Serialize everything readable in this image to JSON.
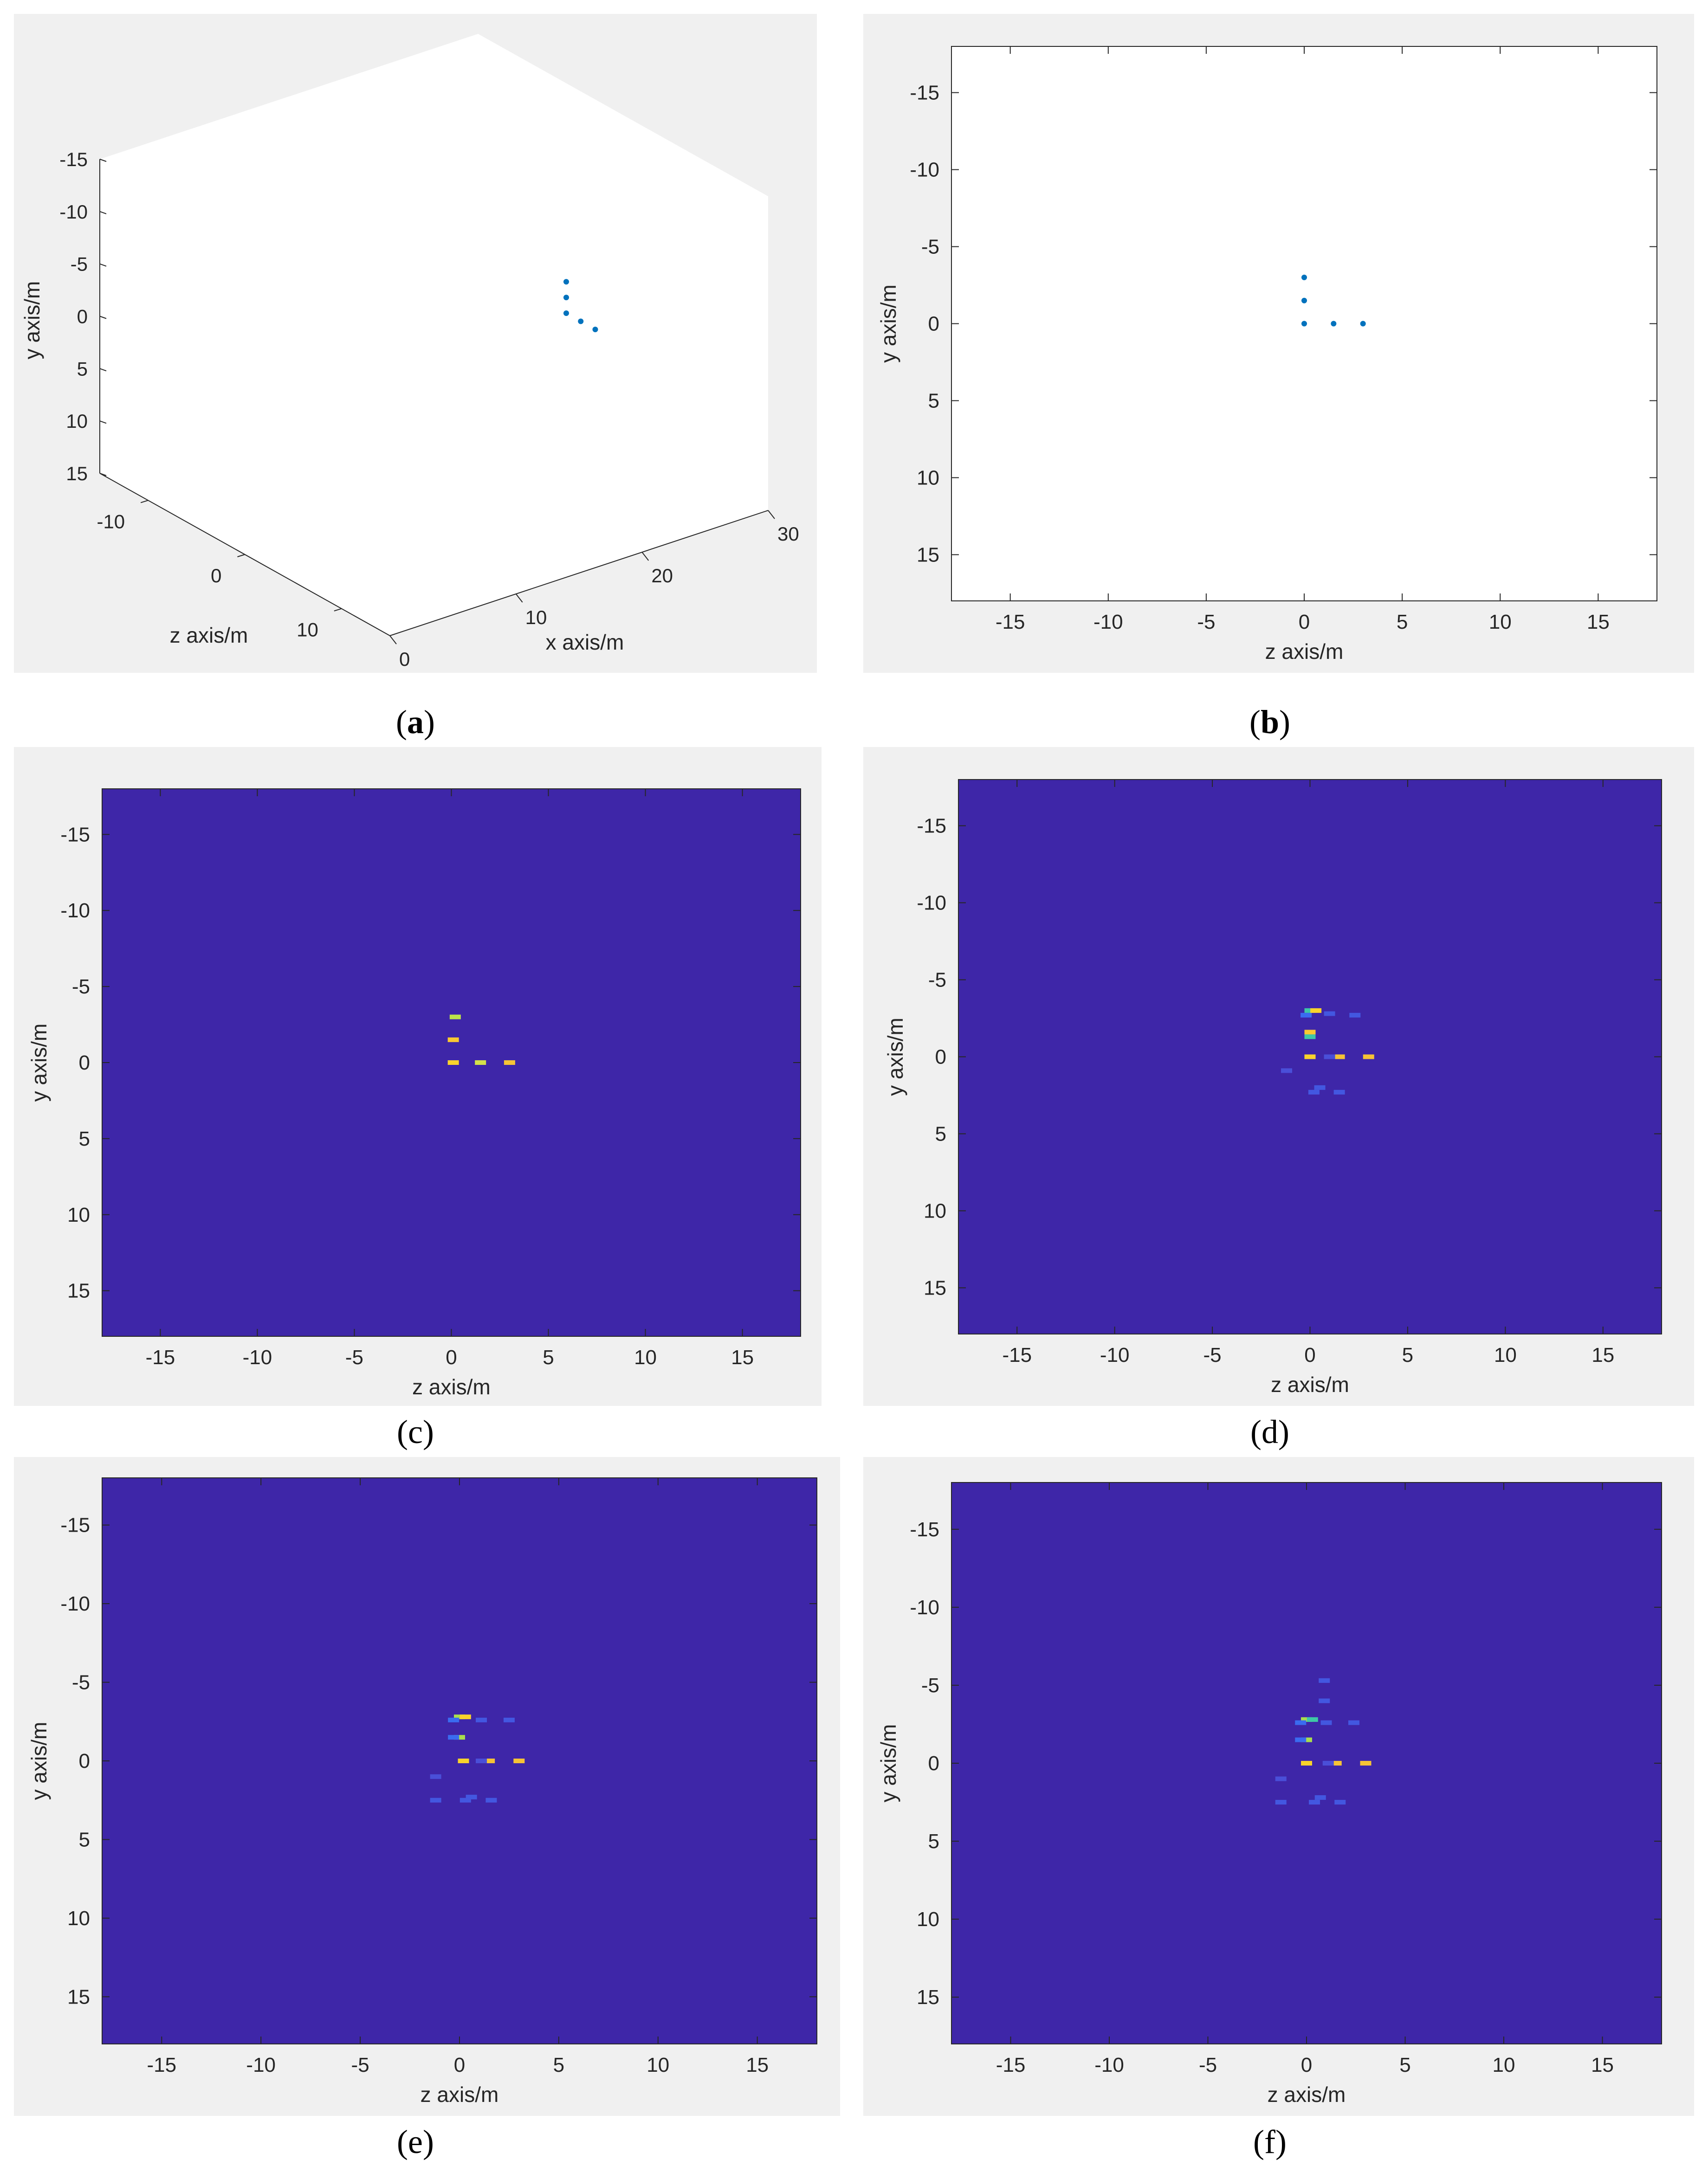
{
  "colors": {
    "figure_bg": "#f0f0f0",
    "axes_bg": "#ffffff",
    "heatmap_bg": "#3e26a8",
    "marker": "#0072bd",
    "axis_line": "#262626",
    "tick_text": "#262626"
  },
  "captions": [
    {
      "letter": "a",
      "bold": true
    },
    {
      "letter": "b",
      "bold": true
    },
    {
      "letter": "c",
      "bold": false
    },
    {
      "letter": "d",
      "bold": false
    },
    {
      "letter": "e",
      "bold": false
    },
    {
      "letter": "f",
      "bold": false
    }
  ],
  "chart_data": [
    {
      "id": "a",
      "type": "scatter3d",
      "xlabel": "x axis/m",
      "ylabel": "y axis/m",
      "zlabel": "z axis/m",
      "xlim": [
        0,
        30
      ],
      "ylim": [
        -15,
        15
      ],
      "zlim": [
        -15,
        15
      ],
      "x_ticks": [
        "0",
        "10",
        "20",
        "30"
      ],
      "y_ticks": [
        "-15",
        "-10",
        "-5",
        "0",
        "5",
        "10",
        "15"
      ],
      "z_ticks": [
        "-10",
        "0",
        "10"
      ],
      "points": [
        {
          "x": 20,
          "y": -3,
          "z": 0
        },
        {
          "x": 20,
          "y": -1.5,
          "z": 0
        },
        {
          "x": 20,
          "y": 0,
          "z": 0
        },
        {
          "x": 20,
          "y": 0,
          "z": 1.5
        },
        {
          "x": 20,
          "y": 0,
          "z": 3
        }
      ]
    },
    {
      "id": "b",
      "type": "scatter",
      "xlabel": "z axis/m",
      "ylabel": "y axis/m",
      "xlim": [
        -18,
        18
      ],
      "ylim": [
        -18,
        18
      ],
      "y_reversed": true,
      "x_ticks": [
        -15,
        -10,
        -5,
        0,
        5,
        10,
        15
      ],
      "y_ticks": [
        -15,
        -10,
        -5,
        0,
        5,
        10,
        15
      ],
      "points": [
        {
          "z": 0,
          "y": -3
        },
        {
          "z": 0,
          "y": -1.5
        },
        {
          "z": 0,
          "y": 0
        },
        {
          "z": 1.5,
          "y": 0
        },
        {
          "z": 3,
          "y": 0
        }
      ]
    },
    {
      "id": "c",
      "type": "heatmap",
      "xlabel": "z axis/m",
      "ylabel": "y axis/m",
      "xlim": [
        -18,
        18
      ],
      "ylim": [
        -18,
        18
      ],
      "y_reversed": true,
      "x_ticks": [
        -15,
        -10,
        -5,
        0,
        5,
        10,
        15
      ],
      "y_ticks": [
        -15,
        -10,
        -5,
        0,
        5,
        10,
        15
      ],
      "cells": [
        {
          "z": 0.2,
          "y": -3,
          "color": "#bde34a"
        },
        {
          "z": 0.1,
          "y": -1.5,
          "color": "#f9c832"
        },
        {
          "z": 0.1,
          "y": 0,
          "color": "#f9d32c"
        },
        {
          "z": 1.5,
          "y": 0,
          "color": "#d4e04a"
        },
        {
          "z": 3,
          "y": 0,
          "color": "#f6c336"
        }
      ]
    },
    {
      "id": "d",
      "type": "heatmap",
      "xlabel": "z axis/m",
      "ylabel": "y axis/m",
      "xlim": [
        -18,
        18
      ],
      "ylim": [
        -18,
        18
      ],
      "y_reversed": true,
      "x_ticks": [
        -15,
        -10,
        -5,
        0,
        5,
        10,
        15
      ],
      "y_ticks": [
        -15,
        -10,
        -5,
        0,
        5,
        10,
        15
      ],
      "cells": [
        {
          "z": 0,
          "y": -3,
          "color": "#3ec8a6"
        },
        {
          "z": 0.3,
          "y": -3,
          "color": "#f9d32c"
        },
        {
          "z": -0.2,
          "y": -2.7,
          "color": "#3a6bf0"
        },
        {
          "z": 0,
          "y": -1.6,
          "color": "#f9c832"
        },
        {
          "z": 0,
          "y": -1.3,
          "color": "#3ec8a6"
        },
        {
          "z": 0,
          "y": 0,
          "color": "#f9d32c"
        },
        {
          "z": 1.5,
          "y": 0,
          "color": "#f6c336"
        },
        {
          "z": 3,
          "y": 0,
          "color": "#f6c336"
        },
        {
          "z": 1.0,
          "y": -2.8,
          "color": "#4357e0"
        },
        {
          "z": 2.3,
          "y": -2.7,
          "color": "#4357e0"
        },
        {
          "z": 1.0,
          "y": 0,
          "color": "#4a4fd8"
        },
        {
          "z": -1.2,
          "y": 0.9,
          "color": "#4a4fd8"
        },
        {
          "z": 0.2,
          "y": 2.3,
          "color": "#4357e0"
        },
        {
          "z": 0.5,
          "y": 2.0,
          "color": "#4357e0"
        },
        {
          "z": 1.5,
          "y": 2.3,
          "color": "#4357e0"
        }
      ]
    },
    {
      "id": "e",
      "type": "heatmap",
      "xlabel": "z axis/m",
      "ylabel": "y axis/m",
      "xlim": [
        -18,
        18
      ],
      "ylim": [
        -18,
        18
      ],
      "y_reversed": true,
      "x_ticks": [
        -15,
        -10,
        -5,
        0,
        5,
        10,
        15
      ],
      "y_ticks": [
        -15,
        -10,
        -5,
        0,
        5,
        10,
        15
      ],
      "cells": [
        {
          "z": 0,
          "y": -2.8,
          "color": "#a9dd4e"
        },
        {
          "z": 0.3,
          "y": -2.8,
          "color": "#f9d32c"
        },
        {
          "z": -0.3,
          "y": -2.6,
          "color": "#3a6bf0"
        },
        {
          "z": 0,
          "y": -1.5,
          "color": "#a9dd4e"
        },
        {
          "z": -0.3,
          "y": -1.5,
          "color": "#3a6bf0"
        },
        {
          "z": 0.2,
          "y": 0,
          "color": "#f9d32c"
        },
        {
          "z": 1.5,
          "y": 0,
          "color": "#f6c336"
        },
        {
          "z": 3,
          "y": 0,
          "color": "#f6c336"
        },
        {
          "z": 1.1,
          "y": -2.6,
          "color": "#4357e0"
        },
        {
          "z": 2.5,
          "y": -2.6,
          "color": "#4357e0"
        },
        {
          "z": 1.1,
          "y": 0,
          "color": "#4a4fd8"
        },
        {
          "z": -1.2,
          "y": 1.0,
          "color": "#4a4fd8"
        },
        {
          "z": -1.2,
          "y": 2.5,
          "color": "#4357e0"
        },
        {
          "z": 0.3,
          "y": 2.5,
          "color": "#4357e0"
        },
        {
          "z": 0.6,
          "y": 2.3,
          "color": "#4357e0"
        },
        {
          "z": 1.6,
          "y": 2.5,
          "color": "#4357e0"
        }
      ]
    },
    {
      "id": "f",
      "type": "heatmap",
      "xlabel": "z axis/m",
      "ylabel": "y axis/m",
      "xlim": [
        -18,
        18
      ],
      "ylim": [
        -18,
        18
      ],
      "y_reversed": true,
      "x_ticks": [
        -15,
        -10,
        -5,
        0,
        5,
        10,
        15
      ],
      "y_ticks": [
        -15,
        -10,
        -5,
        0,
        5,
        10,
        15
      ],
      "cells": [
        {
          "z": 0,
          "y": -2.8,
          "color": "#a9dd4e"
        },
        {
          "z": 0.3,
          "y": -2.8,
          "color": "#3ec8a6"
        },
        {
          "z": -0.3,
          "y": -2.6,
          "color": "#3a6bf0"
        },
        {
          "z": 0,
          "y": -1.5,
          "color": "#a9dd4e"
        },
        {
          "z": -0.3,
          "y": -1.5,
          "color": "#3a6bf0"
        },
        {
          "z": 0,
          "y": 0,
          "color": "#f9d32c"
        },
        {
          "z": 1.5,
          "y": 0,
          "color": "#f6c336"
        },
        {
          "z": 3,
          "y": 0,
          "color": "#f6c336"
        },
        {
          "z": 0.9,
          "y": -5.3,
          "color": "#4357e0"
        },
        {
          "z": 0.9,
          "y": -4.0,
          "color": "#4357e0"
        },
        {
          "z": 1.0,
          "y": -2.6,
          "color": "#4357e0"
        },
        {
          "z": 2.4,
          "y": -2.6,
          "color": "#4357e0"
        },
        {
          "z": 1.1,
          "y": 0,
          "color": "#4a4fd8"
        },
        {
          "z": -1.3,
          "y": 1.0,
          "color": "#4a4fd8"
        },
        {
          "z": -1.3,
          "y": 2.5,
          "color": "#4357e0"
        },
        {
          "z": 0.4,
          "y": 2.5,
          "color": "#4357e0"
        },
        {
          "z": 0.7,
          "y": 2.2,
          "color": "#4357e0"
        },
        {
          "z": 1.7,
          "y": 2.5,
          "color": "#4357e0"
        }
      ]
    }
  ]
}
